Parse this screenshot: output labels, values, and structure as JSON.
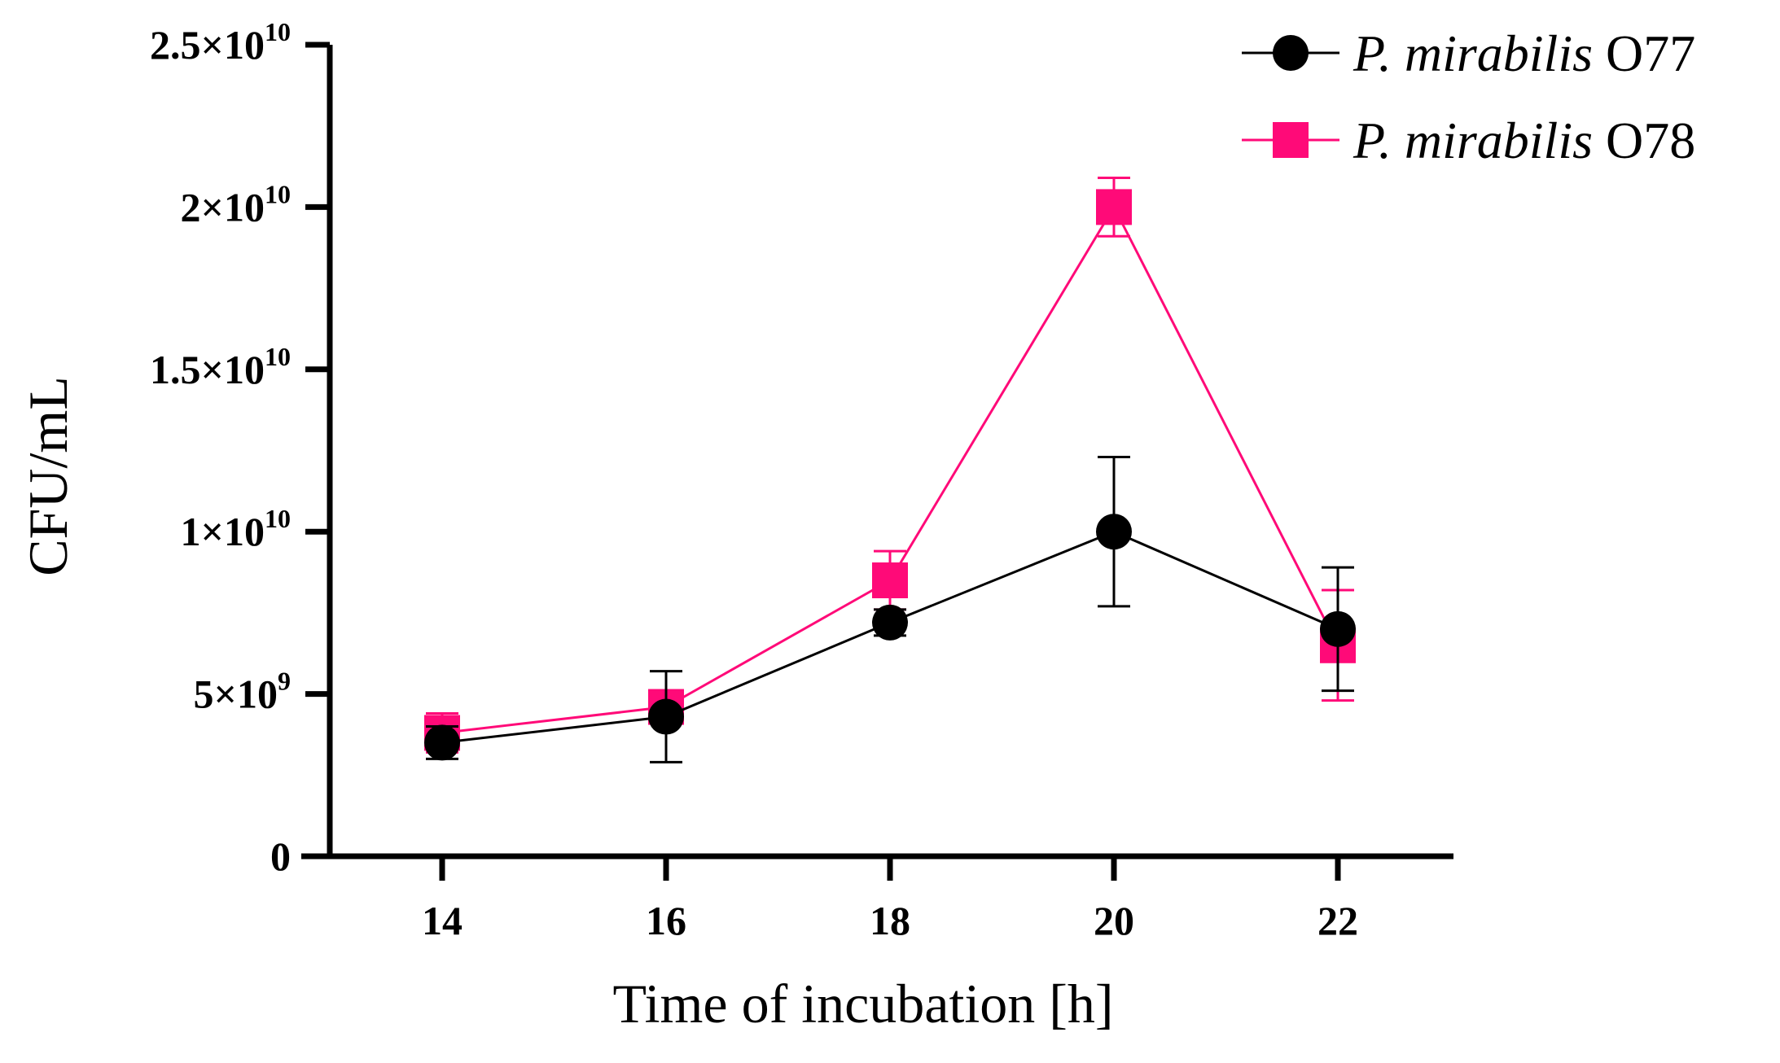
{
  "chart_data": {
    "type": "line",
    "title": "",
    "xlabel": "Time of incubation [h]",
    "ylabel": "CFU/mL",
    "x": [
      14,
      16,
      18,
      20,
      22
    ],
    "xlim": [
      13,
      23
    ],
    "ylim": [
      0,
      25000000000
    ],
    "x_ticks": [
      "14",
      "16",
      "18",
      "20",
      "22"
    ],
    "y_ticks": [
      {
        "value": 0,
        "mant": "0",
        "exp": ""
      },
      {
        "value": 5000000000,
        "mant": "5×10",
        "exp": "9"
      },
      {
        "value": 10000000000,
        "mant": "1×10",
        "exp": "10"
      },
      {
        "value": 15000000000,
        "mant": "1.5×10",
        "exp": "10"
      },
      {
        "value": 20000000000,
        "mant": "2×10",
        "exp": "10"
      },
      {
        "value": 25000000000,
        "mant": "2.5×10",
        "exp": "10"
      }
    ],
    "grid": false,
    "legend_position": "top-right",
    "series": [
      {
        "name_italic": "P. mirabilis",
        "name_rest": " O78",
        "color": "#ff0a78",
        "marker": "square",
        "values": [
          3800000000,
          4600000000,
          8500000000,
          20000000000,
          6500000000
        ],
        "errors": [
          600000000,
          400000000,
          900000000,
          900000000,
          1700000000
        ]
      },
      {
        "name_italic": "P. mirabilis",
        "name_rest": " O77",
        "color": "#000000",
        "marker": "circle",
        "values": [
          3500000000,
          4300000000,
          7200000000,
          10000000000,
          7000000000
        ],
        "errors": [
          500000000,
          1400000000,
          400000000,
          2300000000,
          1900000000
        ]
      }
    ]
  }
}
